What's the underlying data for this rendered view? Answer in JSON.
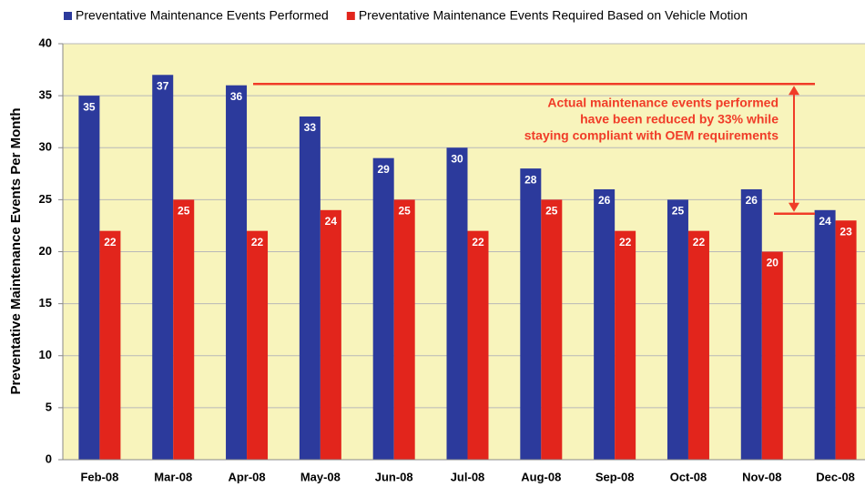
{
  "chart_data": {
    "type": "bar",
    "y_axis_label": "Preventative Maintenance Events Per Month",
    "categories": [
      "Feb-08",
      "Mar-08",
      "Apr-08",
      "May-08",
      "Jun-08",
      "Jul-08",
      "Aug-08",
      "Sep-08",
      "Oct-08",
      "Nov-08",
      "Dec-08"
    ],
    "series": [
      {
        "name": "Preventative Maintenance Events Performed",
        "color": "#2c3a9c",
        "values": [
          35,
          37,
          36,
          33,
          29,
          30,
          28,
          26,
          25,
          26,
          24
        ]
      },
      {
        "name": "Preventative Maintenance Events Required Based on Vehicle Motion",
        "color": "#e2251c",
        "values": [
          22,
          25,
          22,
          24,
          25,
          22,
          25,
          22,
          22,
          20,
          23
        ]
      }
    ],
    "annotation": [
      "Actual maintenance events performed",
      "have been reduced by 33% while",
      "staying compliant with OEM requirements"
    ],
    "ylim": [
      0,
      40
    ],
    "yticks": [
      0,
      5,
      10,
      15,
      20,
      25,
      30,
      35,
      40
    ],
    "grid": true,
    "legend": "top"
  }
}
